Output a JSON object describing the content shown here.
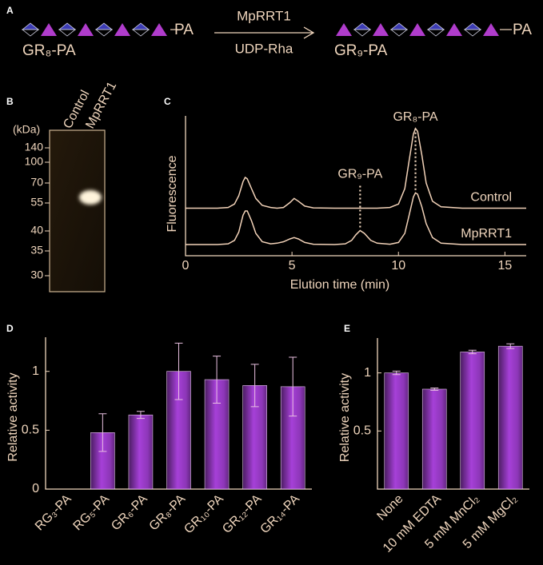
{
  "scheme": {
    "panel": "A",
    "substrate": "GR₈-PA",
    "substrate_tail": "PA",
    "enzyme": "MpRRT1",
    "donor": "UDP-Rha",
    "product": "GR₉-PA",
    "product_tail": "PA"
  },
  "gel": {
    "panel": "B",
    "unit": "(kDa)",
    "lanes": [
      "Control",
      "MpRRT1"
    ],
    "markers": [
      140,
      100,
      70,
      55,
      40,
      35,
      30
    ]
  },
  "chart_data": [
    {
      "type": "line",
      "panel": "C",
      "xlabel": "Elution time (min)",
      "ylabel": "Fluorescence",
      "xlim": [
        0,
        16
      ],
      "xticks": [
        0,
        5,
        10,
        15
      ],
      "ylim": [
        0,
        10
      ],
      "x": [
        0,
        1,
        1.5,
        2,
        2.3,
        2.5,
        2.7,
        2.8,
        2.9,
        3.1,
        3.3,
        3.6,
        4,
        4.3,
        4.6,
        4.9,
        5.1,
        5.3,
        5.6,
        6,
        7,
        7.5,
        7.8,
        8,
        8.2,
        8.4,
        8.7,
        9,
        9.6,
        10,
        10.3,
        10.5,
        10.7,
        10.8,
        10.9,
        11.1,
        11.3,
        11.6,
        12,
        13,
        14,
        16
      ],
      "series": [
        {
          "name": "Control",
          "color": "#f2d2b8",
          "values": [
            3.4,
            3.4,
            3.4,
            3.45,
            3.7,
            4.3,
            5.3,
            5.6,
            5.5,
            4.8,
            4.1,
            3.6,
            3.45,
            3.4,
            3.45,
            3.8,
            4.1,
            3.9,
            3.55,
            3.42,
            3.4,
            3.4,
            3.4,
            3.4,
            3.4,
            3.4,
            3.4,
            3.4,
            3.45,
            3.7,
            4.8,
            6.8,
            8.7,
            9.1,
            8.9,
            7.2,
            5.2,
            3.9,
            3.5,
            3.4,
            3.4,
            3.4
          ]
        },
        {
          "name": "MpRRT1",
          "color": "#f2d2b8",
          "values": [
            0.8,
            0.8,
            0.8,
            0.85,
            1.1,
            1.7,
            2.9,
            3.2,
            3.2,
            2.5,
            1.6,
            1.0,
            0.85,
            0.9,
            1.0,
            1.2,
            1.3,
            1.2,
            0.95,
            0.82,
            0.8,
            0.85,
            1.1,
            1.5,
            1.8,
            1.6,
            1.1,
            0.9,
            0.82,
            0.95,
            1.6,
            2.9,
            4.2,
            4.5,
            4.4,
            3.5,
            2.3,
            1.3,
            0.9,
            0.8,
            0.8,
            0.8
          ]
        }
      ],
      "annotations": [
        {
          "text": "GR₈-PA",
          "x": 10.8
        },
        {
          "text": "GR₉-PA",
          "x": 8.2
        }
      ]
    },
    {
      "type": "bar",
      "panel": "D",
      "ylabel": "Relative activity",
      "color": "#a640d8",
      "categories": [
        "RG₃-PA",
        "RG₅-PA",
        "GR₆-PA",
        "GR₈-PA",
        "GR₁₀-PA",
        "GR₁₂-PA",
        "GR₁₄-PA"
      ],
      "values": [
        0,
        0.48,
        0.63,
        1.0,
        0.93,
        0.88,
        0.87
      ],
      "errors": [
        null,
        0.16,
        0.03,
        0.24,
        0.2,
        0.18,
        0.25
      ],
      "ylim": [
        0,
        1.29
      ],
      "yticks": [
        0,
        0.5,
        1
      ]
    },
    {
      "type": "bar",
      "panel": "E",
      "ylabel": "Relative activity",
      "color": "#a640d8",
      "categories": [
        "None",
        "10 mM EDTA",
        "5 mM MnCl₂",
        "5 mM MgCl₂"
      ],
      "values": [
        1.0,
        0.86,
        1.18,
        1.23
      ],
      "errors": [
        0.015,
        0.01,
        0.015,
        0.02
      ],
      "ylim": [
        0,
        1.3
      ],
      "yticks": [
        0.5,
        1
      ]
    }
  ]
}
